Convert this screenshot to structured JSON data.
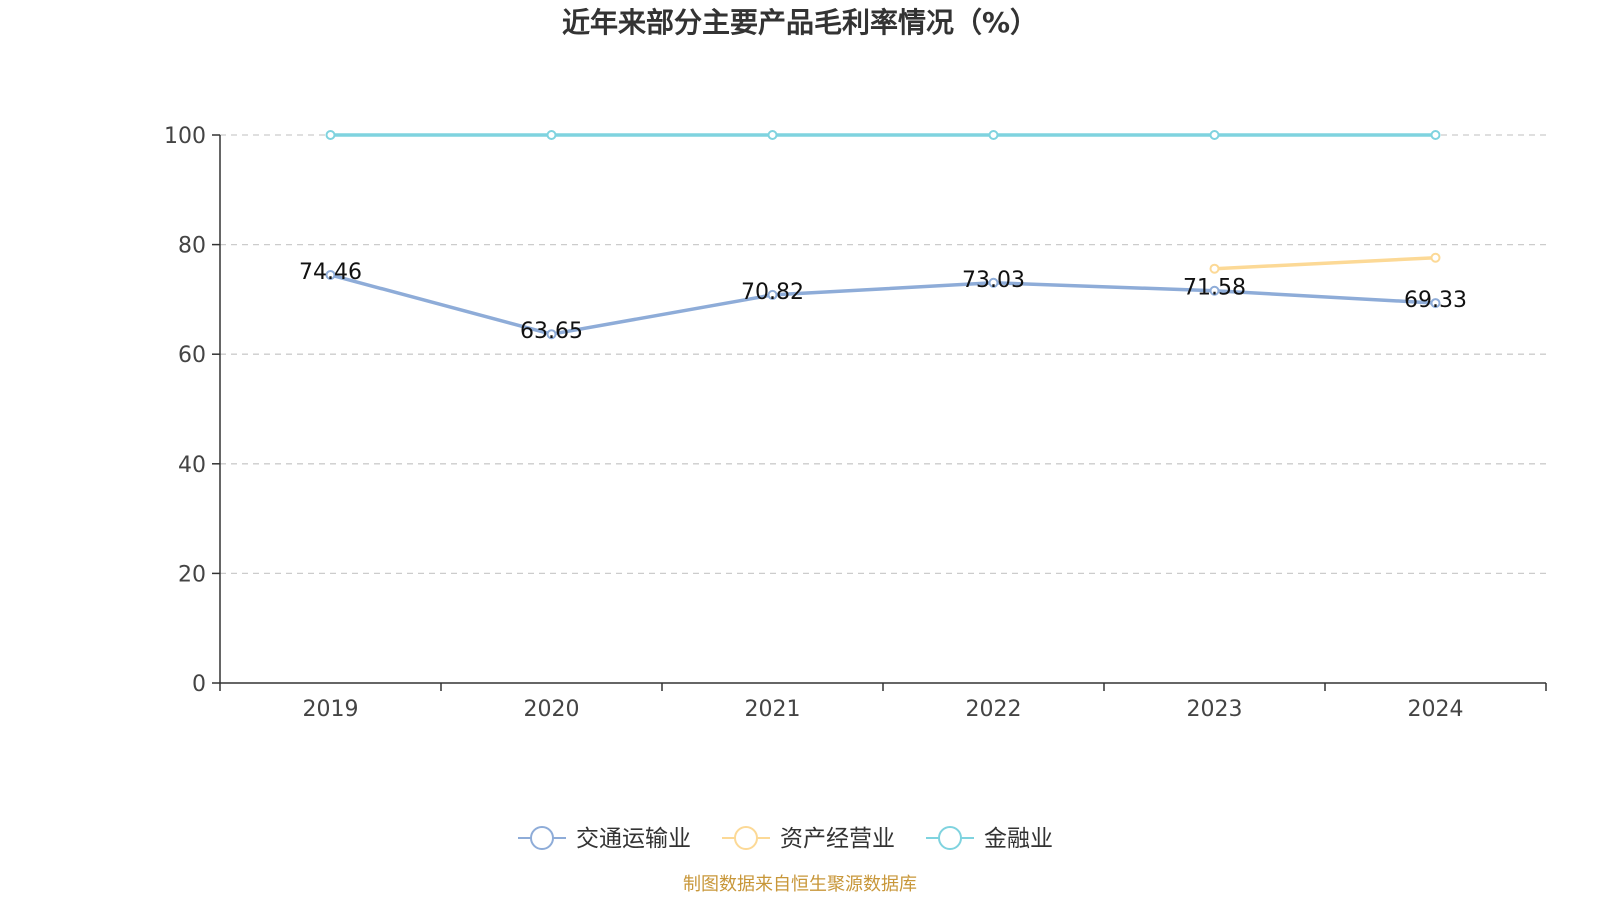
{
  "chart_data": {
    "type": "line",
    "title": "近年来部分主要产品毛利率情况（%）",
    "categories": [
      "2019",
      "2020",
      "2021",
      "2022",
      "2023",
      "2024"
    ],
    "ylim": [
      0,
      100
    ],
    "yticks": [
      0,
      20,
      40,
      60,
      80,
      100
    ],
    "ytick_labels": [
      "0",
      "20",
      "40",
      "60",
      "80",
      "100"
    ],
    "grid": true,
    "legend_position": "bottom-center",
    "series": [
      {
        "name": "交通运输业",
        "color": "#8eacd8",
        "values": [
          74.46,
          63.65,
          70.82,
          73.03,
          71.58,
          69.33
        ],
        "labels": [
          "74.46",
          "63.65",
          "70.82",
          "73.03",
          "71.58",
          "69.33"
        ],
        "show_labels": true
      },
      {
        "name": "资产经营业",
        "color": "#fcd996",
        "values": [
          null,
          null,
          null,
          null,
          75.6,
          77.6
        ],
        "show_labels": false
      },
      {
        "name": "金融业",
        "color": "#7fd3df",
        "values": [
          100,
          100,
          100,
          100,
          100,
          100
        ],
        "show_labels": false
      }
    ]
  },
  "source": {
    "text": "制图数据来自恒生聚源数据库",
    "color": "#c8973a"
  }
}
